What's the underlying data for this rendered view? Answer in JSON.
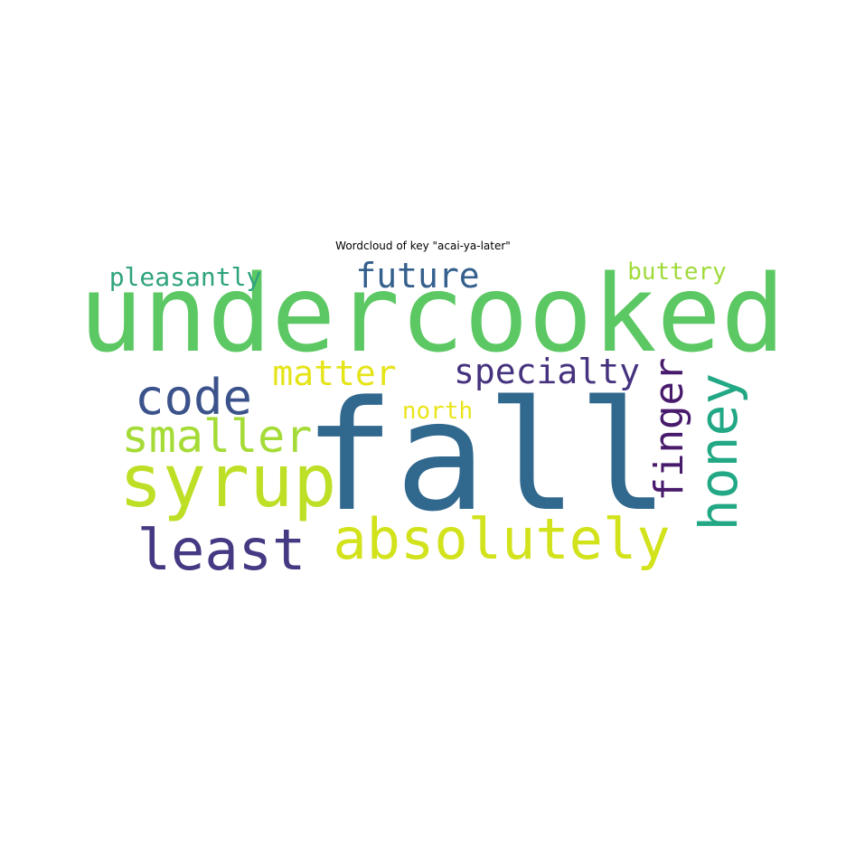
{
  "chart_data": {
    "type": "wordcloud",
    "title": "Wordcloud of key \"acai-ya-later\"",
    "words": [
      {
        "text": "undercooked",
        "color": "#5cc863"
      },
      {
        "text": "fall",
        "color": "#31688e"
      },
      {
        "text": "syrup",
        "color": "#bddf26"
      },
      {
        "text": "absolutely",
        "color": "#d2e21b"
      },
      {
        "text": "least",
        "color": "#443983"
      },
      {
        "text": "code",
        "color": "#3b528b"
      },
      {
        "text": "honey",
        "color": "#22a884"
      },
      {
        "text": "smaller",
        "color": "#a5db36"
      },
      {
        "text": "specialty",
        "color": "#46327e"
      },
      {
        "text": "finger",
        "color": "#481a6c"
      },
      {
        "text": "future",
        "color": "#35608d"
      },
      {
        "text": "matter",
        "color": "#e5e419"
      },
      {
        "text": "pleasantly",
        "color": "#2ea37c"
      },
      {
        "text": "buttery",
        "color": "#9fda3a"
      },
      {
        "text": "north",
        "color": "#eae51a"
      }
    ]
  }
}
